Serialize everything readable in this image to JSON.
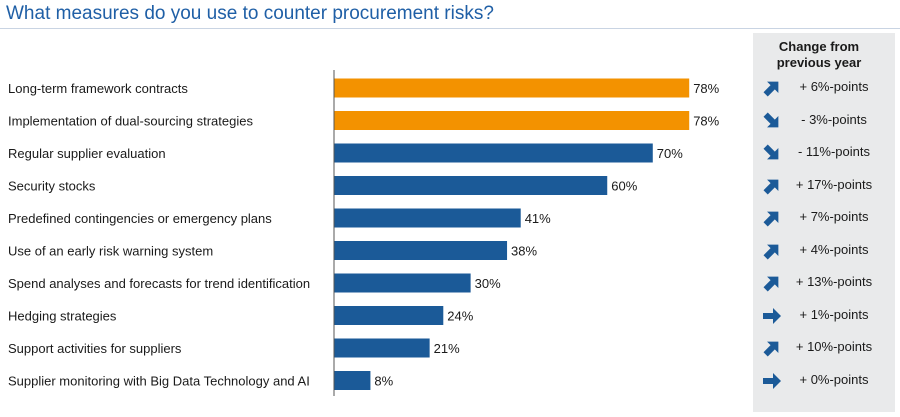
{
  "title": "What measures do you use to counter procurement risks?",
  "change_header": [
    "Change from",
    "previous year"
  ],
  "colors": {
    "highlight": "#f39200",
    "normal": "#1b5a98",
    "arrow": "#1b5a98",
    "axis": "#555555"
  },
  "chart_data": {
    "type": "bar",
    "orientation": "horizontal",
    "categories": [
      "Long-term framework contracts",
      "Implementation of dual-sourcing strategies",
      "Regular supplier evaluation",
      "Security stocks",
      "Predefined contingencies or emergency plans",
      "Use of an early risk warning system",
      "Spend analyses and forecasts for trend identification",
      "Hedging strategies",
      "Support activities for suppliers",
      "Supplier monitoring with Big Data Technology and AI"
    ],
    "values": [
      78,
      78,
      70,
      60,
      41,
      38,
      30,
      24,
      21,
      8
    ],
    "value_labels": [
      "78%",
      "78%",
      "70%",
      "60%",
      "41%",
      "38%",
      "30%",
      "24%",
      "21%",
      "8%"
    ],
    "highlighted": [
      true,
      true,
      false,
      false,
      false,
      false,
      false,
      false,
      false,
      false
    ],
    "xlim": [
      0,
      100
    ],
    "changes": [
      {
        "text": "+ 6%-points",
        "direction": "up"
      },
      {
        "text": "- 3%-points",
        "direction": "down"
      },
      {
        "text": "- 11%-points",
        "direction": "down"
      },
      {
        "text": "+ 17%-points",
        "direction": "up"
      },
      {
        "text": "+ 7%-points",
        "direction": "up"
      },
      {
        "text": "+ 4%-points",
        "direction": "up"
      },
      {
        "text": "+ 13%-points",
        "direction": "up"
      },
      {
        "text": "+ 1%-points",
        "direction": "right"
      },
      {
        "text": "+ 10%-points",
        "direction": "up"
      },
      {
        "text": "+ 0%-points",
        "direction": "right"
      }
    ]
  }
}
